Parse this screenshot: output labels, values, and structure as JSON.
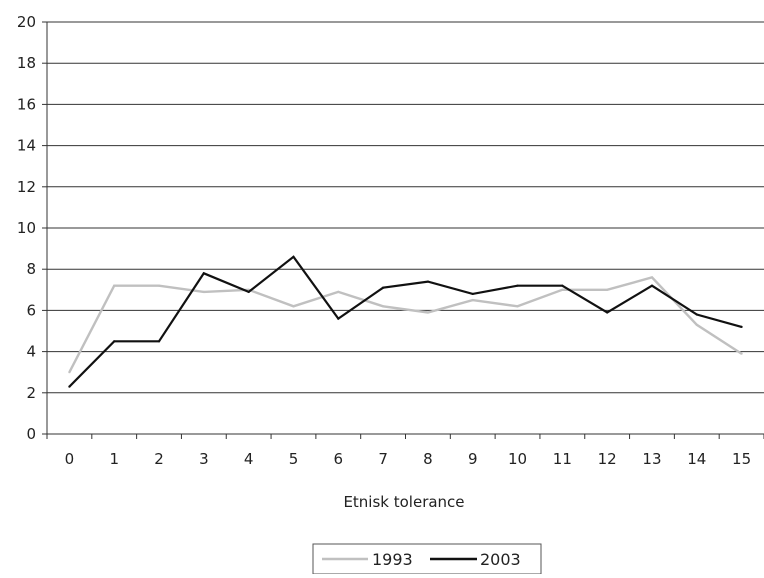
{
  "chart_data": {
    "type": "line",
    "title": "",
    "xlabel": "Etnisk tolerance",
    "ylabel": "",
    "x": [
      0,
      1,
      2,
      3,
      4,
      5,
      6,
      7,
      8,
      9,
      10,
      11,
      12,
      13,
      14,
      15
    ],
    "ylim": [
      0,
      20
    ],
    "yticks": [
      0,
      2,
      4,
      6,
      8,
      10,
      12,
      14,
      16,
      18,
      20
    ],
    "grid": true,
    "legend_position": "bottom",
    "series": [
      {
        "name": "1993",
        "color": "#c0c0c0",
        "values": [
          3.0,
          7.2,
          7.2,
          6.9,
          7.0,
          6.2,
          6.9,
          6.2,
          5.9,
          6.5,
          6.2,
          7.0,
          7.0,
          7.6,
          5.3,
          3.9
        ]
      },
      {
        "name": "2003",
        "color": "#111111",
        "values": [
          2.3,
          4.5,
          4.5,
          7.8,
          6.9,
          8.6,
          5.6,
          7.1,
          7.4,
          6.8,
          7.2,
          7.2,
          5.9,
          7.2,
          5.8,
          5.2
        ]
      }
    ]
  }
}
